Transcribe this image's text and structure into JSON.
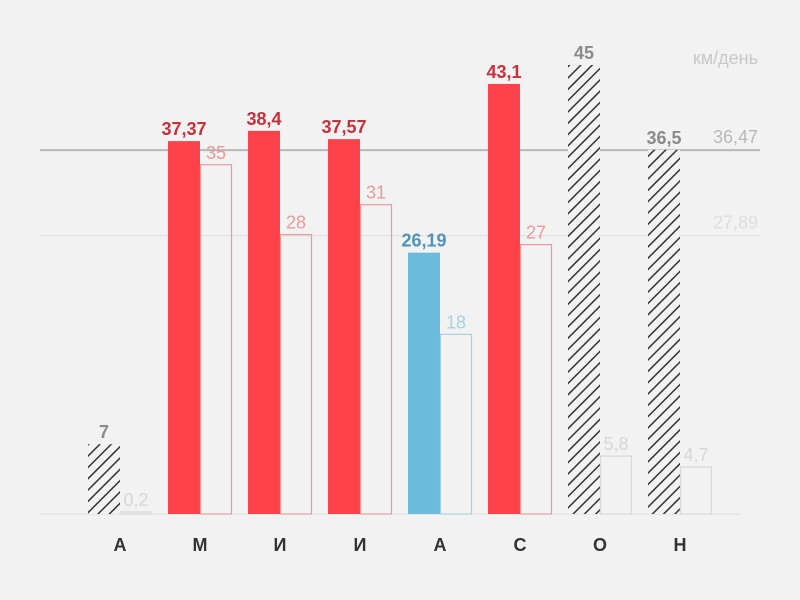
{
  "chart_data": {
    "type": "bar",
    "unit_label": "км/день",
    "categories": [
      "А",
      "М",
      "И",
      "И",
      "А",
      "С",
      "О",
      "Н"
    ],
    "ylim": [
      0,
      45
    ],
    "series": [
      {
        "values": [
          7,
          37.37,
          38.4,
          37.57,
          26.19,
          43.1,
          45,
          36.5
        ],
        "value_labels": [
          "7",
          "37,37",
          "38,4",
          "37,57",
          "26,19",
          "43,1",
          "45",
          "36,5"
        ],
        "colors": [
          "#999999",
          "#ff424a",
          "#ff424a",
          "#ff424a",
          "#6bbcdc",
          "#ff424a",
          "#999999",
          "#999999"
        ],
        "hatched": [
          true,
          false,
          false,
          false,
          false,
          false,
          true,
          true
        ]
      },
      {
        "values": [
          0.2,
          35,
          28,
          31,
          18,
          27,
          5.8,
          4.7
        ],
        "value_labels": [
          "0,2",
          "35",
          "28",
          "31",
          "18",
          "27",
          "5,8",
          "4,7"
        ],
        "colors": [
          "#d6d6d6",
          "#eb9a9a",
          "#eb9a9a",
          "#eb9a9a",
          "#a9d0e3",
          "#eb9a9a",
          "#d6d6d6",
          "#d6d6d6"
        ],
        "outline": true
      }
    ],
    "reference_lines": [
      {
        "value": 36.47,
        "label": "36,47",
        "color": "#b8b8b8"
      },
      {
        "value": 27.89,
        "label": "27,89",
        "color": "#dddddd"
      }
    ]
  }
}
